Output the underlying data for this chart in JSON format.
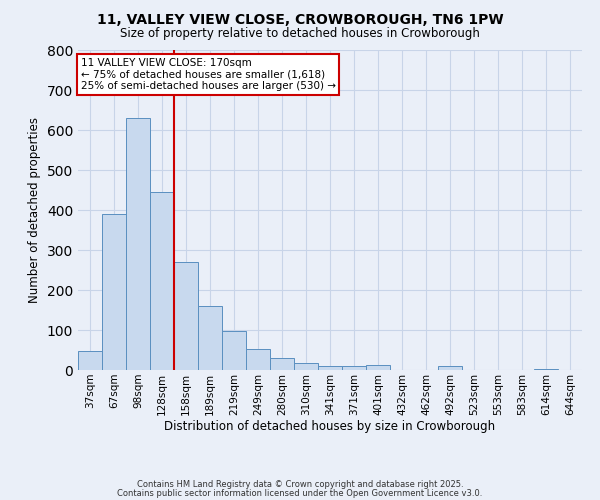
{
  "title_line1": "11, VALLEY VIEW CLOSE, CROWBOROUGH, TN6 1PW",
  "title_line2": "Size of property relative to detached houses in Crowborough",
  "xlabel": "Distribution of detached houses by size in Crowborough",
  "ylabel": "Number of detached properties",
  "categories": [
    "37sqm",
    "67sqm",
    "98sqm",
    "128sqm",
    "158sqm",
    "189sqm",
    "219sqm",
    "249sqm",
    "280sqm",
    "310sqm",
    "341sqm",
    "371sqm",
    "401sqm",
    "432sqm",
    "462sqm",
    "492sqm",
    "523sqm",
    "553sqm",
    "583sqm",
    "614sqm",
    "644sqm"
  ],
  "values": [
    47,
    390,
    630,
    445,
    270,
    160,
    98,
    52,
    30,
    18,
    10,
    10,
    12,
    0,
    0,
    10,
    0,
    0,
    0,
    2,
    0
  ],
  "bar_color": "#c8d9ee",
  "bar_edge_color": "#5a8fc0",
  "bar_width": 1.0,
  "vline_color": "#cc0000",
  "vline_x": 3.5,
  "annotation_title": "11 VALLEY VIEW CLOSE: 170sqm",
  "annotation_line1": "← 75% of detached houses are smaller (1,618)",
  "annotation_line2": "25% of semi-detached houses are larger (530) →",
  "annotation_box_edgecolor": "#cc0000",
  "ylim": [
    0,
    800
  ],
  "yticks": [
    0,
    100,
    200,
    300,
    400,
    500,
    600,
    700,
    800
  ],
  "grid_color": "#c8d4e8",
  "bg_color": "#eaeff8",
  "footnote1": "Contains HM Land Registry data © Crown copyright and database right 2025.",
  "footnote2": "Contains public sector information licensed under the Open Government Licence v3.0."
}
